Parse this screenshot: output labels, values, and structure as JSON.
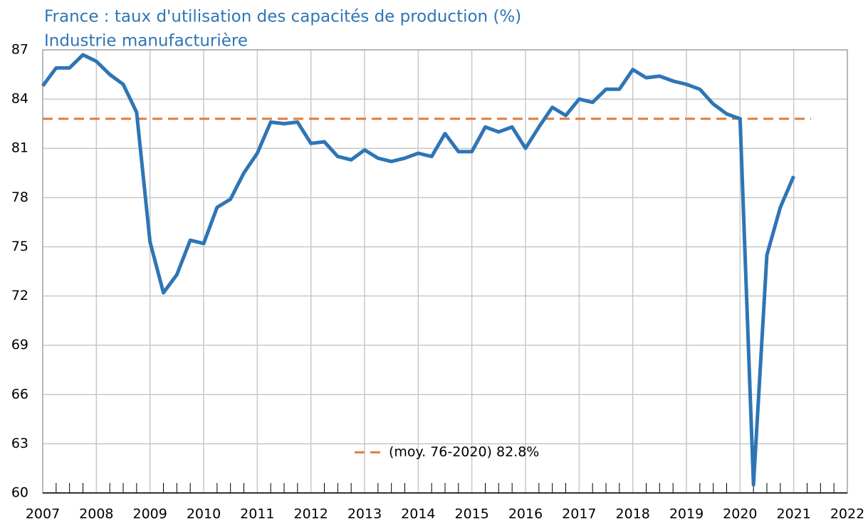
{
  "chart_data": {
    "type": "line",
    "title": "France : taux d'utilisation des capacités de production (%)",
    "subtitle": "Industrie manufacturière",
    "x": [
      2007,
      2007.25,
      2007.5,
      2007.75,
      2008,
      2008.25,
      2008.5,
      2008.75,
      2009,
      2009.25,
      2009.5,
      2009.75,
      2010,
      2010.25,
      2010.5,
      2010.75,
      2011,
      2011.25,
      2011.5,
      2011.75,
      2012,
      2012.25,
      2012.5,
      2012.75,
      2013,
      2013.25,
      2013.5,
      2013.75,
      2014,
      2014.25,
      2014.5,
      2014.75,
      2015,
      2015.25,
      2015.5,
      2015.75,
      2016,
      2016.25,
      2016.5,
      2016.75,
      2017,
      2017.25,
      2017.5,
      2017.75,
      2018,
      2018.25,
      2018.5,
      2018.75,
      2019,
      2019.25,
      2019.5,
      2019.75,
      2020,
      2020.25,
      2020.5,
      2020.75,
      2021
    ],
    "series": [
      {
        "color": "#2e75b6",
        "values": [
          84.8,
          85.9,
          85.9,
          86.7,
          86.3,
          85.5,
          84.9,
          83.2,
          75.3,
          72.2,
          73.3,
          75.4,
          75.2,
          77.4,
          77.9,
          79.5,
          80.7,
          82.6,
          82.5,
          82.6,
          81.3,
          81.4,
          80.5,
          80.3,
          80.9,
          80.4,
          80.2,
          80.4,
          80.7,
          80.5,
          81.9,
          80.8,
          80.8,
          82.3,
          82.0,
          82.3,
          81.0,
          82.3,
          83.5,
          83.0,
          84.0,
          83.8,
          84.6,
          84.6,
          85.8,
          85.3,
          85.4,
          85.1,
          84.9,
          84.6,
          83.7,
          83.1,
          82.8,
          60.5,
          74.5,
          77.4,
          79.3
        ]
      }
    ],
    "average": {
      "name": "(moy. 76-2020) 82.8%",
      "value": 82.8,
      "color": "#e07b39"
    },
    "xlim": [
      2007,
      2022
    ],
    "xticks": [
      2007,
      2008,
      2009,
      2010,
      2011,
      2012,
      2013,
      2014,
      2015,
      2016,
      2017,
      2018,
      2019,
      2020,
      2021,
      2022
    ],
    "ylim": [
      60,
      87
    ],
    "yticks": [
      60,
      63,
      66,
      69,
      72,
      75,
      78,
      81,
      84,
      87
    ],
    "grid": true
  }
}
